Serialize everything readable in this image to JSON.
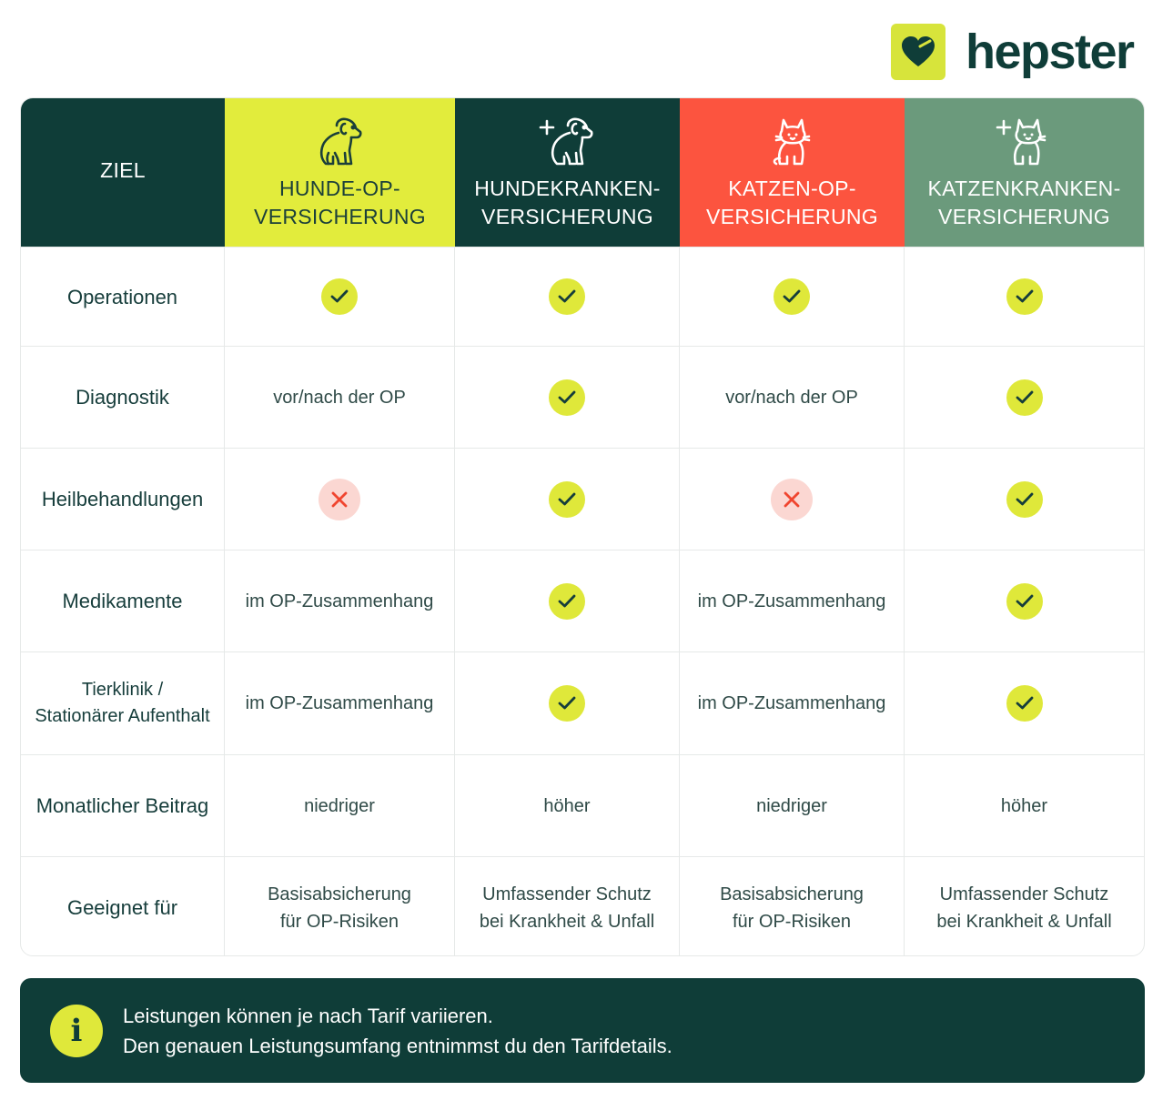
{
  "brand": {
    "name": "hepster",
    "accent": "#d7e43b",
    "dark": "#0f3d38"
  },
  "header": {
    "goal_label": "ZIEL",
    "columns": [
      {
        "line1": "HUNDE-OP-",
        "line2": "VERSICHERUNG",
        "icon": "dog-icon",
        "color": "#e2ec3c"
      },
      {
        "line1": "HUNDEKRANKEN-",
        "line2": "VERSICHERUNG",
        "icon": "dog-plus-icon",
        "color": "#0f3d38"
      },
      {
        "line1": "KATZEN-OP-",
        "line2": "VERSICHERUNG",
        "icon": "cat-icon",
        "color": "#fc543f"
      },
      {
        "line1": "KATZENKRANKEN-",
        "line2": "VERSICHERUNG",
        "icon": "cat-plus-icon",
        "color": "#6b9a7c"
      }
    ]
  },
  "rows": [
    {
      "label": "Operationen",
      "values": [
        "check",
        "check",
        "check",
        "check"
      ]
    },
    {
      "label": "Diagnostik",
      "values": [
        "vor/nach der OP",
        "check",
        "vor/nach der OP",
        "check"
      ]
    },
    {
      "label": "Heilbehandlungen",
      "values": [
        "cross",
        "check",
        "cross",
        "check"
      ]
    },
    {
      "label": "Medikamente",
      "values": [
        "im OP-Zusammenhang",
        "check",
        "im OP-Zusammenhang",
        "check"
      ]
    },
    {
      "label_line1": "Tierklinik /",
      "label_line2": "Stationärer Aufenthalt",
      "values": [
        "im OP-Zusammenhang",
        "check",
        "im OP-Zusammenhang",
        "check"
      ]
    },
    {
      "label": "Monatlicher Beitrag",
      "values": [
        "niedriger",
        "höher",
        "niedriger",
        "höher"
      ]
    },
    {
      "label": "Geeignet für",
      "values": [
        {
          "line1": "Basisabsicherung",
          "line2": "für OP-Risiken"
        },
        {
          "line1": "Umfassender Schutz",
          "line2": "bei Krankheit & Unfall"
        },
        {
          "line1": "Basisabsicherung",
          "line2": "für OP-Risiken"
        },
        {
          "line1": "Umfassender Schutz",
          "line2": "bei Krankheit & Unfall"
        }
      ]
    }
  ],
  "info": {
    "line1": "Leistungen können je nach Tarif variieren.",
    "line2": "Den genauen Leistungsumfang entnimmst du den Tarifdetails.",
    "icon_glyph": "i"
  }
}
